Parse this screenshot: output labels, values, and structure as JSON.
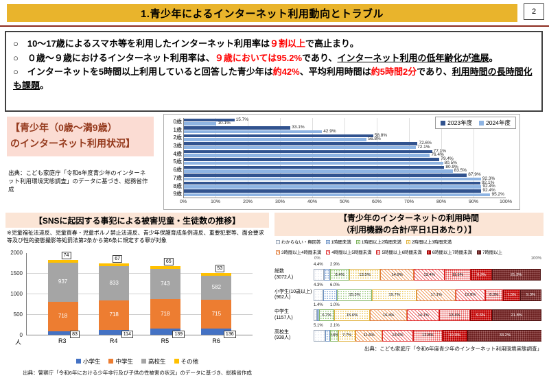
{
  "header": {
    "title": "1.青少年によるインターネット利用動向とトラブル",
    "page_number": "2"
  },
  "summary": {
    "bullets": [
      {
        "segments": [
          {
            "t": "○　10～17歳によるスマホ等を利用したインターネット利用率は",
            "c": "n"
          },
          {
            "t": "９割以上",
            "c": "r"
          },
          {
            "t": "で高止まり。",
            "c": "n"
          }
        ]
      },
      {
        "segments": [
          {
            "t": "○　０歳～９歳におけるインターネット利用率は、",
            "c": "n"
          },
          {
            "t": "９歳においては95.2%",
            "c": "r"
          },
          {
            "t": "であり、",
            "c": "n"
          },
          {
            "t": "インターネット利用の低年齢化が進展",
            "c": "u"
          },
          {
            "t": "。",
            "c": "n"
          }
        ]
      },
      {
        "segments": [
          {
            "t": "○　インターネットを5時間以上利用していると回答した青少年は",
            "c": "n"
          },
          {
            "t": "約42%",
            "c": "r"
          },
          {
            "t": "、平均利用時間は",
            "c": "n"
          },
          {
            "t": "約5時間2分",
            "c": "r"
          },
          {
            "t": "であり、",
            "c": "n"
          },
          {
            "t": "利用時間の長時間化も課題",
            "c": "u"
          },
          {
            "t": "。",
            "c": "n"
          }
        ]
      }
    ]
  },
  "left_panel": {
    "title_lines": [
      "【青少年（0歳～満9歳）",
      "のインターネット利用状況】"
    ],
    "source": "出典：こども家庭庁「令和6年度青少年のインターネット利用環境実態調査」のデータに基づき、総務省作成"
  },
  "chart_data": [
    {
      "id": "age_usage",
      "type": "bar",
      "orientation": "horizontal",
      "categories": [
        "0歳",
        "1歳",
        "2歳",
        "3歳",
        "4歳",
        "5歳",
        "6歳",
        "7歳",
        "8歳",
        "9歳"
      ],
      "series": [
        {
          "name": "2023年度",
          "color": "#31538f",
          "values": [
            15.7,
            33.1,
            58.8,
            72.6,
            77.1,
            79.4,
            80.9,
            87.9,
            92.1,
            92.4
          ]
        },
        {
          "name": "2024年度",
          "color": "#8eb4e3",
          "values": [
            10.1,
            42.9,
            56.8,
            72.1,
            76.4,
            80.5,
            83.5,
            92.3,
            92.4,
            95.2
          ]
        }
      ],
      "x_ticks": [
        "0%",
        "10%",
        "20%",
        "30%",
        "40%",
        "50%",
        "60%",
        "70%",
        "80%",
        "90%",
        "100%"
      ],
      "xlim": [
        0,
        100
      ],
      "grid": true,
      "legend_position": "top-right"
    },
    {
      "id": "sns_victims",
      "type": "stacked-bar",
      "title": "【SNSに起因する事犯による被害児童・生徒数の推移】",
      "note": "※児童福祉法違反、児童買春・児童ポルノ禁止法違反、青少年保護育成条例違反、重要犯罪等、面会要求等及び性的姿態撮影等処罰法第2条から第6条に規定する罪が対象",
      "unit": "人",
      "categories": [
        "R3",
        "R4",
        "R5",
        "R6"
      ],
      "series": [
        {
          "name": "小学生",
          "color": "#4472c4",
          "values": [
            83,
            114,
            139,
            136
          ],
          "label_pos": "callout-bottom"
        },
        {
          "name": "中学生",
          "color": "#ed7d31",
          "values": [
            718,
            718,
            718,
            715
          ],
          "label_pos": "inside"
        },
        {
          "name": "高校生",
          "color": "#a5a5a5",
          "values": [
            937,
            833,
            743,
            582
          ],
          "label_pos": "inside"
        },
        {
          "name": "その他",
          "color": "#ffc000",
          "values": [
            74,
            67,
            65,
            53
          ],
          "label_pos": "callout-top"
        }
      ],
      "y_ticks": [
        0,
        500,
        1000,
        1500,
        2000
      ],
      "ylim": [
        0,
        2000
      ],
      "legend_position": "bottom",
      "source": "出典：警察庁「令和6年における少年非行及び子供の性被害の状況」のデータに基づき、総務省作成"
    },
    {
      "id": "usage_time",
      "type": "stacked-bar-100",
      "title_lines": [
        "【青少年のインターネットの利用時間",
        "（利用機器の合計/平日1日あたり）】"
      ],
      "legend": [
        "わからない・無回答",
        "1時間未満",
        "1時間以上2時間未満",
        "2時間以上3時間未満",
        "3時間以上4時間未満",
        "4時間以上5時間未満",
        "5時間以上6時間未満",
        "6時間以上7時間未満",
        "7時間以上"
      ],
      "rows": [
        {
          "label": "総数",
          "sub": "(3072人)",
          "values": [
            4.4,
            2.9,
            8.4,
            13.5,
            14.9,
            13.4,
            11.5,
            9.3,
            21.3
          ]
        },
        {
          "label": "小学生(10歳以上)",
          "sub": "(962人)",
          "values": [
            4.3,
            6.0,
            15.3,
            19.7,
            17.1,
            12.8,
            8.0,
            7.5,
            9.3
          ]
        },
        {
          "label": "中学生",
          "sub": "(1157人)",
          "values": [
            1.4,
            1.0,
            6.7,
            15.6,
            16.4,
            14.1,
            13.4,
            9.6,
            21.8
          ]
        },
        {
          "label": "高校生",
          "sub": "(938人)",
          "values": [
            5.1,
            2.1,
            3.6,
            7.7,
            11.6,
            13.6,
            12.8,
            10.9,
            33.2
          ]
        }
      ],
      "axis_labels": [
        "0%",
        "100%"
      ],
      "xlim": [
        0,
        100
      ],
      "source": "出典：こども家庭庁「令和6年度青少年のインターネット利用環境実態調査」"
    }
  ]
}
